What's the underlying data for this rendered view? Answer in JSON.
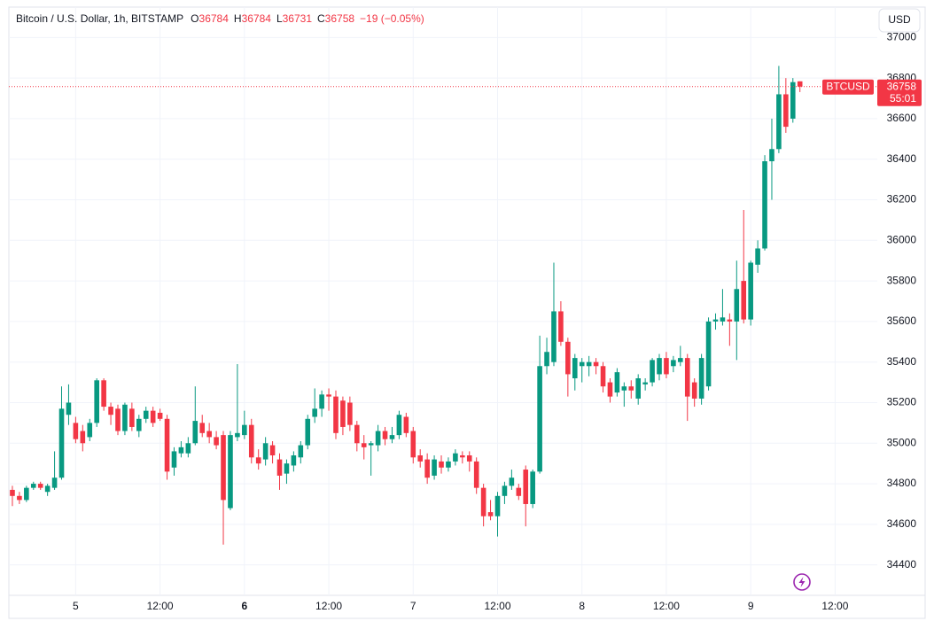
{
  "header": {
    "symbol": "Bitcoin / U.S. Dollar, 1h, BITSTAMP",
    "o_label": "O",
    "o": 36784,
    "h_label": "H",
    "h": 36784,
    "l_label": "L",
    "l": 36731,
    "c_label": "C",
    "c": 36758,
    "change": "−19 (−0.05%)",
    "currency": "USD"
  },
  "chart_data": {
    "type": "candlestick",
    "up_color": "#089981",
    "down_color": "#f23645",
    "xlim": [
      -0.5,
      123
    ],
    "ylim": [
      34250,
      37150
    ],
    "xticks": [
      {
        "value": 9,
        "label": "5"
      },
      {
        "value": 21,
        "label": "12:00"
      },
      {
        "value": 33,
        "label": "6"
      },
      {
        "value": 45,
        "label": "12:00"
      },
      {
        "value": 57,
        "label": "7"
      },
      {
        "value": 69,
        "label": "12:00"
      },
      {
        "value": 81,
        "label": "8"
      },
      {
        "value": 93,
        "label": "12:00"
      },
      {
        "value": 105,
        "label": "9"
      },
      {
        "value": 117,
        "label": "12:00"
      }
    ],
    "yticks": [
      34400,
      34600,
      34800,
      35000,
      35200,
      35400,
      35600,
      35800,
      36000,
      36200,
      36400,
      36600,
      36800,
      37000
    ],
    "grid": true,
    "last_price": {
      "symbol": "BTCUSD",
      "value": 36758,
      "countdown": "55:01"
    },
    "series": {
      "open": [
        34770,
        34740,
        34720,
        34780,
        34800,
        34760,
        34780,
        34830,
        35140,
        35100,
        35060,
        35030,
        35100,
        35310,
        35180,
        35170,
        35060,
        35170,
        35060,
        35120,
        35160,
        35150,
        35120,
        34880,
        34950,
        34950,
        35000,
        35100,
        35060,
        35030,
        35040,
        34680,
        35030,
        35040,
        35090,
        34930,
        34920,
        34990,
        34920,
        34850,
        34890,
        34930,
        34990,
        35130,
        35170,
        35240,
        35230,
        35210,
        35200,
        35090,
        35000,
        34990,
        34990,
        35060,
        35020,
        35040,
        35130,
        35060,
        34940,
        34920,
        34840,
        34910,
        34880,
        34910,
        34940,
        34940,
        34910,
        34780,
        34660,
        34640,
        34740,
        34790,
        34780,
        34870,
        34700,
        34860,
        35380,
        35400,
        35650,
        35500,
        35320,
        35380,
        35380,
        35400,
        35380,
        35300,
        35250,
        35260,
        35280,
        35220,
        35290,
        35300,
        35340,
        35420,
        35380,
        35400,
        35420,
        35300,
        35220,
        35280,
        35600,
        35600,
        35610,
        35600,
        35800,
        35610,
        35880,
        35960,
        36390,
        36450,
        36720,
        36600,
        36784
      ],
      "high": [
        34790,
        34760,
        34790,
        34810,
        34810,
        34800,
        34960,
        35280,
        35290,
        35130,
        35090,
        35120,
        35320,
        35320,
        35200,
        35190,
        35200,
        35200,
        35140,
        35180,
        35180,
        35170,
        35140,
        34980,
        35010,
        35030,
        35280,
        35140,
        35100,
        35060,
        35060,
        35060,
        35390,
        35160,
        35120,
        34970,
        35030,
        35010,
        34950,
        34920,
        34960,
        35010,
        35140,
        35270,
        35260,
        35270,
        35260,
        35230,
        35230,
        35110,
        35040,
        35010,
        35090,
        35080,
        35080,
        35160,
        35150,
        35080,
        34970,
        34950,
        34940,
        34940,
        34930,
        34970,
        34960,
        34960,
        34930,
        34800,
        34720,
        34760,
        34810,
        34870,
        34800,
        34890,
        34870,
        35530,
        35520,
        35890,
        35700,
        35520,
        35440,
        35420,
        35430,
        35420,
        35400,
        35320,
        35370,
        35300,
        35310,
        35340,
        35320,
        35420,
        35440,
        35450,
        35430,
        35480,
        35440,
        35320,
        35440,
        35620,
        35640,
        35760,
        35640,
        35900,
        36150,
        35900,
        36000,
        36420,
        36600,
        36860,
        36800,
        36800,
        36784
      ],
      "low": [
        34690,
        34700,
        34710,
        34770,
        34770,
        34740,
        34770,
        34820,
        35090,
        35000,
        34960,
        35010,
        35080,
        35160,
        35090,
        35040,
        35040,
        35060,
        35030,
        35100,
        35080,
        35110,
        34820,
        34840,
        34930,
        34930,
        34990,
        35030,
        35000,
        34970,
        34500,
        34670,
        35010,
        35020,
        34900,
        34870,
        34890,
        34900,
        34770,
        34800,
        34860,
        34900,
        34970,
        35100,
        35130,
        35160,
        35020,
        35040,
        35060,
        34960,
        34920,
        34840,
        34960,
        34990,
        35000,
        35020,
        35030,
        34900,
        34880,
        34800,
        34820,
        34850,
        34860,
        34890,
        34900,
        34860,
        34750,
        34590,
        34620,
        34540,
        34700,
        34770,
        34720,
        34590,
        34680,
        34850,
        35340,
        35380,
        35480,
        35230,
        35260,
        35300,
        35330,
        35340,
        35250,
        35200,
        35230,
        35180,
        35220,
        35190,
        35260,
        35280,
        35310,
        35320,
        35350,
        35380,
        35110,
        35180,
        35190,
        35260,
        35560,
        35580,
        35480,
        35410,
        35590,
        35580,
        35840,
        35950,
        36200,
        36430,
        36530,
        36580,
        36731
      ],
      "close": [
        34740,
        34720,
        34780,
        34800,
        34780,
        34790,
        34830,
        35170,
        35200,
        35020,
        35000,
        35100,
        35310,
        35180,
        35140,
        35060,
        35190,
        35080,
        35120,
        35160,
        35100,
        35120,
        34860,
        34960,
        34980,
        35000,
        35110,
        35050,
        35030,
        34990,
        34720,
        35040,
        35050,
        35090,
        34930,
        34900,
        35000,
        34940,
        34840,
        34900,
        34940,
        34990,
        35120,
        35170,
        35240,
        35230,
        35050,
        35080,
        35090,
        35000,
        34980,
        35000,
        35060,
        35020,
        35040,
        35140,
        35050,
        34930,
        34910,
        34830,
        34920,
        34880,
        34910,
        34950,
        34930,
        34910,
        34780,
        34640,
        34640,
        34740,
        34790,
        34830,
        34740,
        34700,
        34860,
        35380,
        35450,
        35650,
        35500,
        35340,
        35420,
        35400,
        35400,
        35380,
        35280,
        35230,
        35350,
        35280,
        35260,
        35320,
        35300,
        35410,
        35420,
        35340,
        35410,
        35420,
        35230,
        35220,
        35420,
        35600,
        35610,
        35620,
        35600,
        35760,
        35610,
        35890,
        35960,
        36390,
        36450,
        36720,
        36560,
        36780,
        36758
      ]
    }
  }
}
